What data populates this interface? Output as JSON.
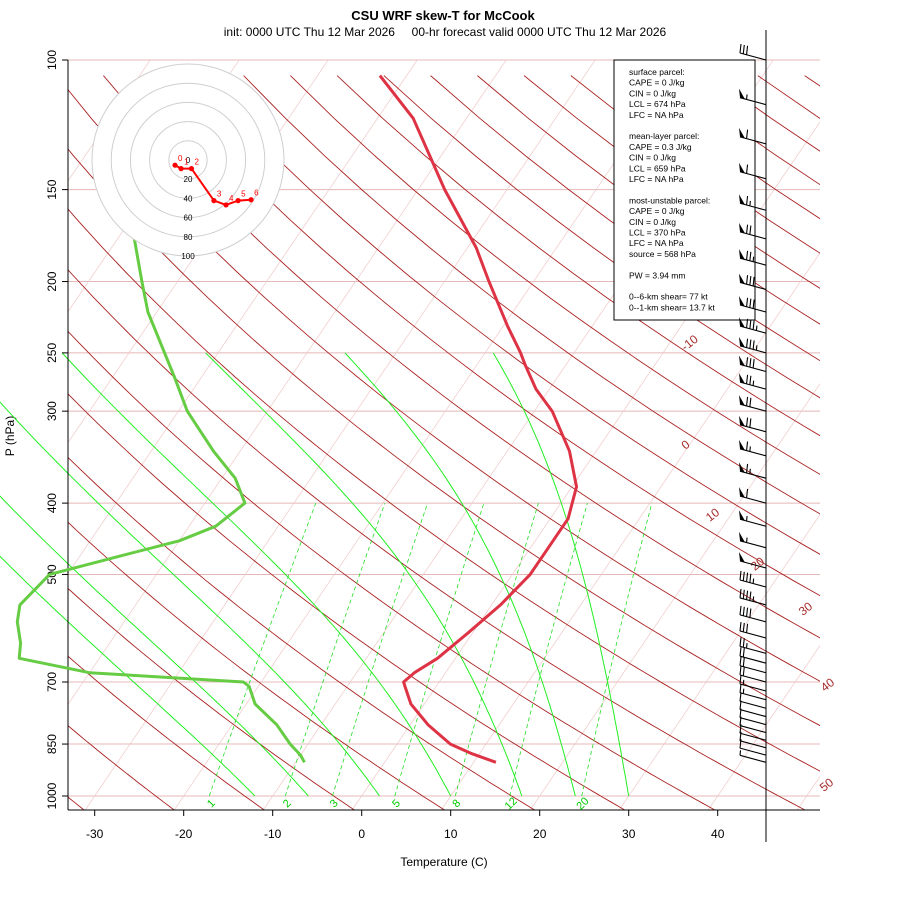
{
  "chart_data": {
    "type": "skew-t",
    "title": "CSU WRF skew-T for McCook",
    "subtitle": "init: 0000 UTC Thu 12 Mar 2026     00-hr forecast valid 0000 UTC Thu 12 Mar 2026",
    "xlabel": "Temperature (C)",
    "ylabel": "P (hPa)",
    "xlim": [
      -33,
      51
    ],
    "ylim": [
      1000,
      100
    ],
    "x_ticks": [
      -30,
      -20,
      -10,
      0,
      10,
      20,
      30,
      40
    ],
    "y_ticks": [
      100,
      150,
      200,
      250,
      300,
      400,
      500,
      700,
      850,
      1000
    ],
    "temperature_profile": [
      [
        900,
        12.5
      ],
      [
        875,
        9
      ],
      [
        850,
        6
      ],
      [
        800,
        2
      ],
      [
        750,
        -1.5
      ],
      [
        710,
        -3.5
      ],
      [
        700,
        -4
      ],
      [
        680,
        -3.5
      ],
      [
        650,
        -2
      ],
      [
        600,
        -0.5
      ],
      [
        550,
        1
      ],
      [
        500,
        2
      ],
      [
        460,
        2
      ],
      [
        420,
        2
      ],
      [
        380,
        0.5
      ],
      [
        340,
        -3
      ],
      [
        300,
        -8
      ],
      [
        280,
        -11.5
      ],
      [
        260,
        -14.5
      ],
      [
        250,
        -16
      ],
      [
        230,
        -19.5
      ],
      [
        200,
        -25
      ],
      [
        180,
        -29
      ],
      [
        150,
        -37
      ],
      [
        120,
        -46
      ],
      [
        105,
        -53
      ]
    ],
    "dewpoint_profile": [
      [
        900,
        -9
      ],
      [
        880,
        -10
      ],
      [
        850,
        -12
      ],
      [
        800,
        -15
      ],
      [
        750,
        -19
      ],
      [
        710,
        -21
      ],
      [
        700,
        -22
      ],
      [
        690,
        -31
      ],
      [
        680,
        -40
      ],
      [
        650,
        -49
      ],
      [
        620,
        -50
      ],
      [
        580,
        -52
      ],
      [
        550,
        -53
      ],
      [
        500,
        -52
      ],
      [
        470,
        -45
      ],
      [
        450,
        -40
      ],
      [
        430,
        -37
      ],
      [
        400,
        -35.5
      ],
      [
        370,
        -38.5
      ],
      [
        340,
        -43
      ],
      [
        300,
        -49
      ],
      [
        270,
        -53
      ],
      [
        250,
        -56
      ],
      [
        220,
        -61
      ],
      [
        200,
        -64
      ],
      [
        170,
        -69
      ]
    ],
    "isotherm_labels": [
      -10,
      0,
      10,
      20,
      30,
      40,
      50
    ],
    "mixing_ratio_labels": [
      1,
      2,
      3,
      5,
      8,
      12,
      20
    ],
    "hodograph": {
      "ring_labels": [
        0,
        20,
        40,
        60,
        80,
        100
      ],
      "point_labels": [
        "0",
        "1",
        "2",
        "3",
        "4",
        "5",
        "6"
      ],
      "points_kt": [
        [
          -15,
          6
        ],
        [
          -8,
          10
        ],
        [
          4,
          10
        ],
        [
          30,
          47
        ],
        [
          44,
          52
        ],
        [
          58,
          47
        ],
        [
          73,
          46
        ]
      ]
    },
    "parcel_info": [
      "surface parcel:",
      "CAPE = 0 J/kg",
      "CIN = 0 J/kg",
      "LCL = 674 hPa",
      "LFC = NA hPa",
      "",
      "mean-layer parcel:",
      "CAPE = 0.3 J/kg",
      "CIN = 0 J/kg",
      "LCL = 659 hPa",
      "LFC = NA hPa",
      "",
      "most-unstable parcel:",
      "CAPE = 0 J/kg",
      "CIN = 0 J/kg",
      "LCL = 370 hPa",
      "LFC = NA hPa",
      "source = 568 hPa",
      "",
      "PW =  3.94 mm",
      "",
      "0--6-km shear= 77 kt",
      "0--1-km shear= 13.7 kt"
    ],
    "wind_barbs": [
      [
        100,
        30
      ],
      [
        115,
        55
      ],
      [
        130,
        60
      ],
      [
        145,
        60
      ],
      [
        160,
        65
      ],
      [
        175,
        70
      ],
      [
        190,
        75
      ],
      [
        205,
        80
      ],
      [
        220,
        80
      ],
      [
        235,
        85
      ],
      [
        250,
        85
      ],
      [
        265,
        80
      ],
      [
        280,
        75
      ],
      [
        300,
        70
      ],
      [
        320,
        70
      ],
      [
        345,
        65
      ],
      [
        370,
        65
      ],
      [
        400,
        60
      ],
      [
        430,
        55
      ],
      [
        460,
        55
      ],
      [
        490,
        50
      ],
      [
        520,
        45
      ],
      [
        550,
        45
      ],
      [
        580,
        40
      ],
      [
        610,
        30
      ],
      [
        640,
        25
      ],
      [
        660,
        20
      ],
      [
        680,
        20
      ],
      [
        700,
        20
      ],
      [
        720,
        15
      ],
      [
        740,
        15
      ],
      [
        760,
        10
      ],
      [
        780,
        10
      ],
      [
        800,
        10
      ],
      [
        820,
        10
      ],
      [
        840,
        10
      ],
      [
        860,
        10
      ],
      [
        880,
        10
      ],
      [
        900,
        5
      ]
    ],
    "colors": {
      "temperature": "#dd3344",
      "dewpoint": "#66cc44",
      "isotherm": "#a52a2a",
      "dry_adiabat": "#aa2222",
      "moist_adiabat": "#22ee22",
      "mixing_ratio": "#22dd22",
      "hodograph": "#ff0000"
    }
  }
}
